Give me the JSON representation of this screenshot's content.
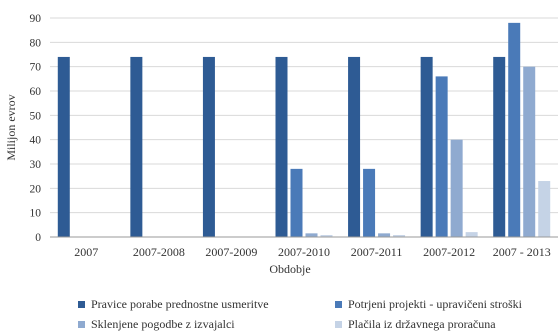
{
  "chart_data": {
    "type": "bar",
    "ylabel": "Milijon evrov",
    "xlabel": "Obdobje",
    "ylim": [
      0,
      90
    ],
    "ytick_step": 10,
    "grid": "horizontal",
    "legend_position": "bottom",
    "categories": [
      "2007",
      "2007-2008",
      "2007-2009",
      "2007-2010",
      "2007-2011",
      "2007-2012",
      "2007 - 2013"
    ],
    "series": [
      {
        "name": "Pravice porabe prednostne usmeritve",
        "color": "#2E5B94",
        "values": [
          74,
          74,
          74,
          74,
          74,
          74,
          74
        ]
      },
      {
        "name": "Potrjeni projekti - upravičeni stroški",
        "color": "#4A7AB8",
        "values": [
          0,
          0,
          0,
          28,
          28,
          66,
          88
        ]
      },
      {
        "name": "Sklenjene pogodbe z izvajalci",
        "color": "#8FAAD0",
        "values": [
          0,
          0,
          0,
          1.5,
          1.5,
          40,
          70
        ]
      },
      {
        "name": "Plačila iz državnega proračuna",
        "color": "#C5D3E6",
        "values": [
          0,
          0,
          0,
          0.8,
          0.8,
          2,
          23
        ]
      }
    ]
  }
}
